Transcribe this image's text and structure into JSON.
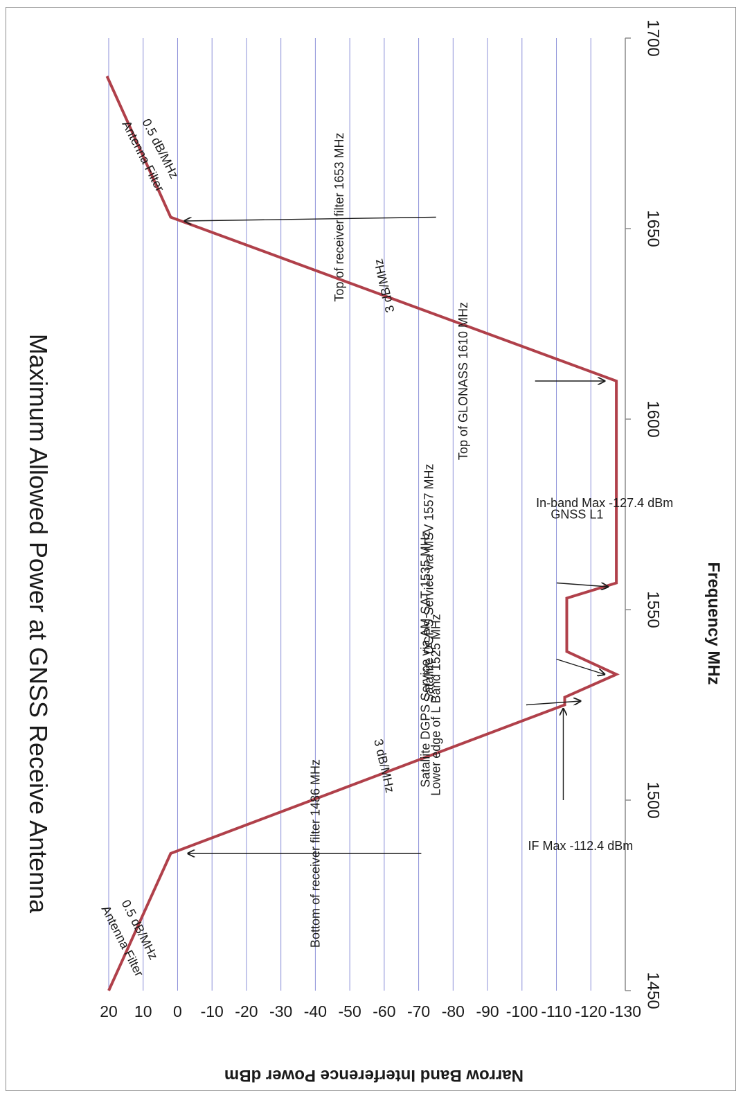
{
  "chart_data": {
    "type": "line",
    "title": "Maximum Allowed Power at GNSS Receive Antenna",
    "xlabel": "Frequency MHz",
    "ylabel": "Narrow Band Interference Power dBm",
    "xlim": [
      1450,
      1700
    ],
    "ylim": [
      -130,
      20
    ],
    "x_ticks": [
      "1450",
      "1500",
      "1550",
      "1600",
      "1650",
      "1700"
    ],
    "y_ticks": [
      "20",
      "10",
      "0",
      "-10",
      "-20",
      "-30",
      "-40",
      "-50",
      "-60",
      "-70",
      "-80",
      "-90",
      "-100",
      "-110",
      "-120",
      "-130"
    ],
    "grid": "horizontal",
    "orientation": "rotated 90° clockwise",
    "colors": {
      "line": "#b0404a",
      "grid": "#8b8fd8",
      "axis": "#8a8a8a",
      "text": "#1a1a1a"
    },
    "series": [
      {
        "values": [
          [
            1450,
            20
          ],
          [
            1486,
            2
          ],
          [
            1525,
            -112.4
          ],
          [
            1527,
            -112.4
          ],
          [
            1533,
            -127.4
          ],
          [
            1539,
            -113
          ],
          [
            1553,
            -113
          ],
          [
            1557,
            -127.4
          ],
          [
            1610,
            -127.4
          ],
          [
            1653,
            2
          ],
          [
            1690,
            20.5
          ]
        ]
      }
    ],
    "annotations": [
      {
        "text": "Antenna Filter",
        "x": 1463,
        "y": 16
      },
      {
        "text": "0.5 dB/MHz",
        "x": 1466,
        "y": 11
      },
      {
        "text": "Bottom of receiver filter 1486 MHz",
        "x": 1486,
        "y": -40
      },
      {
        "text": "3 dB/MHz",
        "x": 1509,
        "y": -60
      },
      {
        "text": "IF Max -112.4 dBm",
        "x": 1488,
        "y": -117
      },
      {
        "text": "Lower edge of L Band 1525 MHz",
        "x": 1525,
        "y": -75
      },
      {
        "text": "Sataliite DGPS Service via AM-SAT 1535 MHz",
        "x": 1537,
        "y": -72
      },
      {
        "text": "Sataliite DGPS Service via MSV 1557   MHz",
        "x": 1557,
        "y": -73
      },
      {
        "text": "GNSS L1",
        "x": 1575,
        "y": -116
      },
      {
        "text": "In-band Max -127.4 dBm",
        "x": 1578,
        "y": -124
      },
      {
        "text": "Top of GLONASS 1610 MHz",
        "x": 1610,
        "y": -83
      },
      {
        "text": "3 dB/MHz",
        "x": 1635,
        "y": -60
      },
      {
        "text": "Top of receiver filter 1653 MHz",
        "x": 1653,
        "y": -47
      },
      {
        "text": "Antenna Filter",
        "x": 1669,
        "y": 10
      },
      {
        "text": "0.5 dB/MHz",
        "x": 1671,
        "y": 5
      }
    ]
  }
}
